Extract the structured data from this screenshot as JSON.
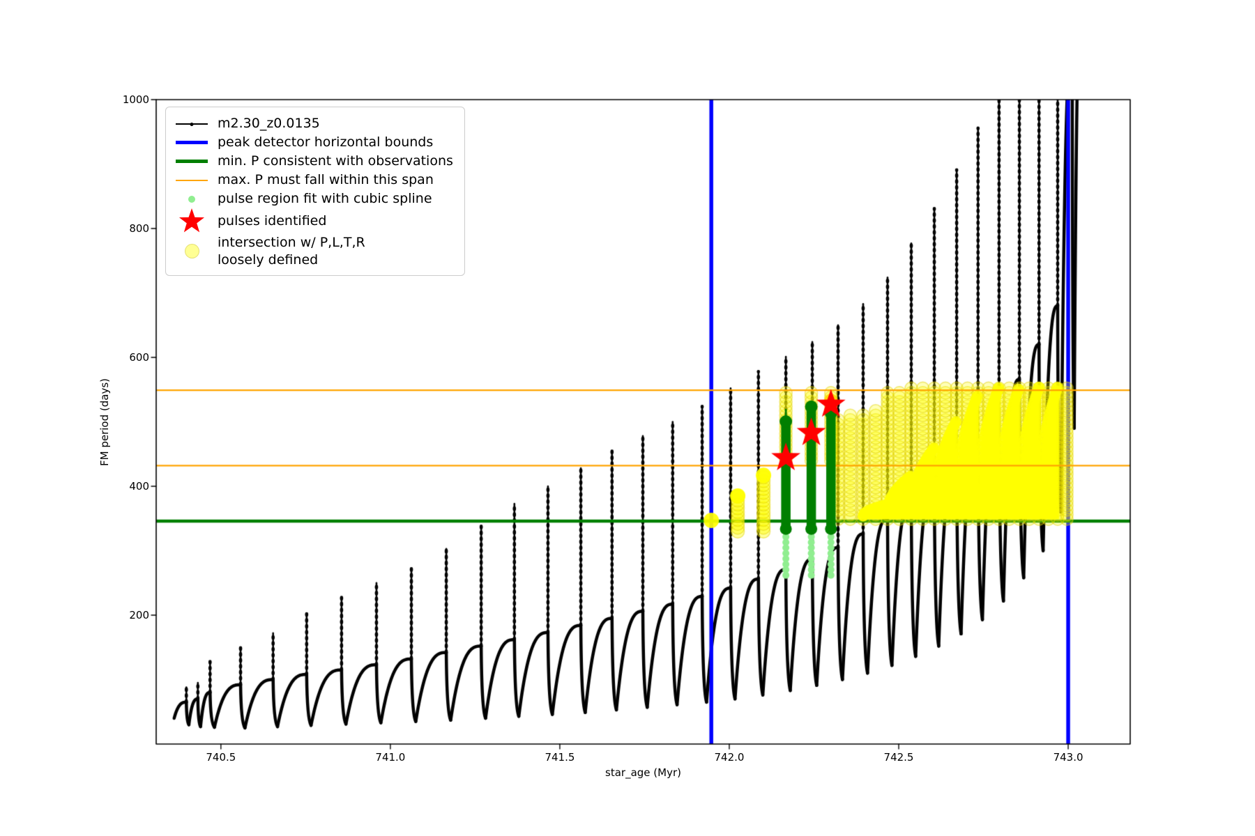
{
  "chart_data": {
    "type": "line+scatter",
    "title": "",
    "xlabel": "star_age (Myr)",
    "ylabel": "FM period (days)",
    "xlim": [
      740.309,
      743.183
    ],
    "ylim": [
      0,
      1000
    ],
    "grid": false,
    "legend_position": "upper left",
    "xticks": [
      {
        "v": 740.5,
        "label": "740.5"
      },
      {
        "v": 741.0,
        "label": "741.0"
      },
      {
        "v": 741.5,
        "label": "741.5"
      },
      {
        "v": 742.0,
        "label": "742.0"
      },
      {
        "v": 742.5,
        "label": "742.5"
      },
      {
        "v": 743.0,
        "label": "743.0"
      }
    ],
    "yticks": [
      {
        "v": 200,
        "label": "200"
      },
      {
        "v": 400,
        "label": "400"
      },
      {
        "v": 600,
        "label": "600"
      },
      {
        "v": 800,
        "label": "800"
      },
      {
        "v": 1000,
        "label": "1000"
      }
    ],
    "colors": {
      "series": "#000000",
      "bounds": "#0000ff",
      "min_p": "#007f00",
      "max_p_span": "#ffa500",
      "spline_region": "#90ee90",
      "pulses": "#ff0000",
      "intersection": "#ffff00"
    },
    "vlines": {
      "ages": [
        741.947,
        743.0
      ]
    },
    "hlines": {
      "min_p": 346,
      "max_p_span": [
        432,
        549
      ]
    },
    "series_label": "m2.30_z0.0135",
    "series_start": {
      "t": 740.362,
      "p": 40
    },
    "cycles": [
      [
        740.398,
        65,
        88,
        30
      ],
      [
        740.432,
        70,
        95,
        27
      ],
      [
        740.468,
        80,
        128,
        26
      ],
      [
        740.558,
        92,
        150,
        25
      ],
      [
        740.654,
        100,
        172,
        27
      ],
      [
        740.753,
        108,
        203,
        29
      ],
      [
        740.856,
        115,
        228,
        31
      ],
      [
        740.959,
        123,
        250,
        33
      ],
      [
        741.062,
        132,
        272,
        35
      ],
      [
        741.165,
        142,
        303,
        37
      ],
      [
        741.268,
        152,
        338,
        40
      ],
      [
        741.366,
        162,
        373,
        43
      ],
      [
        741.465,
        173,
        400,
        46
      ],
      [
        741.562,
        184,
        428,
        49
      ],
      [
        741.654,
        195,
        455,
        53
      ],
      [
        741.745,
        206,
        478,
        57
      ],
      [
        741.833,
        217,
        500,
        61
      ],
      [
        741.92,
        229,
        524,
        65
      ],
      [
        742.004,
        242,
        552,
        70
      ],
      [
        742.086,
        256,
        578,
        76
      ],
      [
        742.167,
        271,
        601,
        83
      ],
      [
        742.245,
        287,
        624,
        91
      ],
      [
        742.321,
        305,
        650,
        100
      ],
      [
        742.395,
        326,
        683,
        110
      ],
      [
        742.467,
        350,
        724,
        122
      ],
      [
        742.537,
        377,
        777,
        136
      ],
      [
        742.605,
        407,
        831,
        152
      ],
      [
        742.671,
        440,
        891,
        171
      ],
      [
        742.734,
        477,
        956,
        193
      ],
      [
        742.796,
        519,
        1035,
        222
      ],
      [
        742.856,
        566,
        1120,
        258
      ],
      [
        742.914,
        620,
        1210,
        300
      ],
      [
        742.969,
        680,
        1310,
        360
      ],
      [
        743.012,
        1080,
        1450,
        490
      ],
      [
        743.038,
        1150,
        1520,
        999
      ]
    ],
    "pulse_regions": [
      {
        "age": 742.167,
        "p_lo": 262,
        "p_mid": 338,
        "p_hi": 494,
        "spike_top": 519
      },
      {
        "age": 742.242,
        "p_lo": 262,
        "p_mid": 338,
        "p_hi": 517,
        "spike_top": 518
      },
      {
        "age": 742.3,
        "p_lo": 262,
        "p_mid": 338,
        "p_hi": 507,
        "spike_top": 521
      }
    ],
    "stars": [
      {
        "age": 742.167,
        "p": 444
      },
      {
        "age": 742.242,
        "p": 483
      },
      {
        "age": 742.3,
        "p": 527
      }
    ],
    "yellow": {
      "dot": {
        "age": 741.947,
        "p": 347
      },
      "short_columns": [
        {
          "age": 742.025,
          "p_lo": 338,
          "p_hi": 385
        },
        {
          "age": 742.101,
          "p_lo": 338,
          "p_hi": 417
        }
      ],
      "ring_columns": [
        {
          "age": 742.167,
          "p_lo": 440,
          "p_hi": 550
        },
        {
          "age": 742.242,
          "p_lo": 440,
          "p_hi": 550
        },
        {
          "age": 742.3,
          "p_lo": 440,
          "p_hi": 550
        },
        {
          "age": 742.321,
          "p_lo": 349,
          "p_hi": 505
        },
        {
          "age": 742.357,
          "p_lo": 349,
          "p_hi": 510
        },
        {
          "age": 742.395,
          "p_lo": 349,
          "p_hi": 515
        },
        {
          "age": 742.432,
          "p_lo": 349,
          "p_hi": 520
        },
        {
          "age": 742.467,
          "p_lo": 349,
          "p_hi": 545
        },
        {
          "age": 742.502,
          "p_lo": 349,
          "p_hi": 550
        },
        {
          "age": 742.537,
          "p_lo": 349,
          "p_hi": 553
        },
        {
          "age": 742.571,
          "p_lo": 349,
          "p_hi": 553
        },
        {
          "age": 742.605,
          "p_lo": 349,
          "p_hi": 555
        },
        {
          "age": 742.638,
          "p_lo": 349,
          "p_hi": 555
        },
        {
          "age": 742.671,
          "p_lo": 349,
          "p_hi": 555
        },
        {
          "age": 742.703,
          "p_lo": 349,
          "p_hi": 555
        },
        {
          "age": 742.734,
          "p_lo": 349,
          "p_hi": 553
        },
        {
          "age": 742.765,
          "p_lo": 349,
          "p_hi": 553
        },
        {
          "age": 742.796,
          "p_lo": 349,
          "p_hi": 555
        },
        {
          "age": 742.826,
          "p_lo": 349,
          "p_hi": 553
        },
        {
          "age": 742.856,
          "p_lo": 349,
          "p_hi": 555
        },
        {
          "age": 742.885,
          "p_lo": 349,
          "p_hi": 553
        },
        {
          "age": 742.914,
          "p_lo": 349,
          "p_hi": 555
        },
        {
          "age": 742.942,
          "p_lo": 349,
          "p_hi": 553
        },
        {
          "age": 742.969,
          "p_lo": 349,
          "p_hi": 556
        },
        {
          "age": 742.996,
          "p_lo": 349,
          "p_hi": 558
        }
      ],
      "solid": {
        "t0": 742.432,
        "t1": 742.972,
        "p_base": 346,
        "p_cap": 551,
        "slope": 640
      },
      "extra_dots": [
        {
          "age": 742.3,
          "p": 533
        }
      ]
    },
    "legend": [
      {
        "label": "m2.30_z0.0135",
        "marker": "line-dot",
        "color": "#000000"
      },
      {
        "label": "peak detector horizontal bounds",
        "marker": "thick-line",
        "color": "#0000ff"
      },
      {
        "label": "min. P consistent with observations",
        "marker": "thick-line",
        "color": "#007f00"
      },
      {
        "label": "max. P must fall within this span",
        "marker": "line",
        "color": "#ffa500"
      },
      {
        "label": "pulse region fit with cubic spline",
        "marker": "small-dot",
        "color": "#90ee90"
      },
      {
        "label": "pulses identified",
        "marker": "star",
        "color": "#ff0000"
      },
      {
        "label": "intersection w/ P,L,T,R",
        "label2": "loosely defined",
        "marker": "big-dot",
        "color": "#ffff00"
      }
    ]
  }
}
